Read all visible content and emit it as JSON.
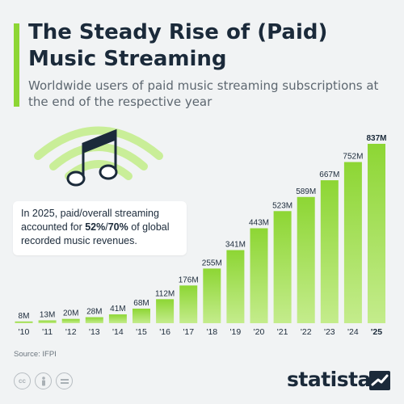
{
  "title": "The Steady Rise of (Paid) Music Streaming",
  "subtitle": "Worldwide users of paid music streaming subscriptions at the end of the respective year",
  "note": {
    "before": "In 2025, paid/overall streaming accounted for ",
    "paid": "52%",
    "sep": "/",
    "overall": "70%",
    "after": " of global recorded music revenues."
  },
  "source": "Source: IFPI",
  "brand": "statista",
  "icons": [
    "music-note-icon",
    "wifi-waves-icon",
    "cc-icon",
    "attribution-icon",
    "no-derivatives-icon",
    "statista-logo-icon"
  ],
  "colors": {
    "bar": "#8dd634",
    "bar_light": "#c4ec8c",
    "text": "#1b2a3a",
    "accent": "#8dd634"
  },
  "chart_data": {
    "type": "bar",
    "categories": [
      "'10",
      "'11",
      "'12",
      "'13",
      "'14",
      "'15",
      "'16",
      "'17",
      "'18",
      "'19",
      "'20",
      "'21",
      "'22",
      "'23",
      "'24",
      "'25"
    ],
    "values": [
      8,
      13,
      20,
      28,
      41,
      68,
      112,
      176,
      255,
      341,
      443,
      523,
      589,
      667,
      752,
      837
    ],
    "data_labels": [
      "8M",
      "13M",
      "20M",
      "28M",
      "41M",
      "68M",
      "112M",
      "176M",
      "255M",
      "341M",
      "443M",
      "523M",
      "589M",
      "667M",
      "752M",
      "837M"
    ],
    "highlight_last": true,
    "title": "The Steady Rise of (Paid) Music Streaming",
    "xlabel": "",
    "ylabel": "",
    "ylim": [
      0,
      837
    ],
    "grid": false
  }
}
